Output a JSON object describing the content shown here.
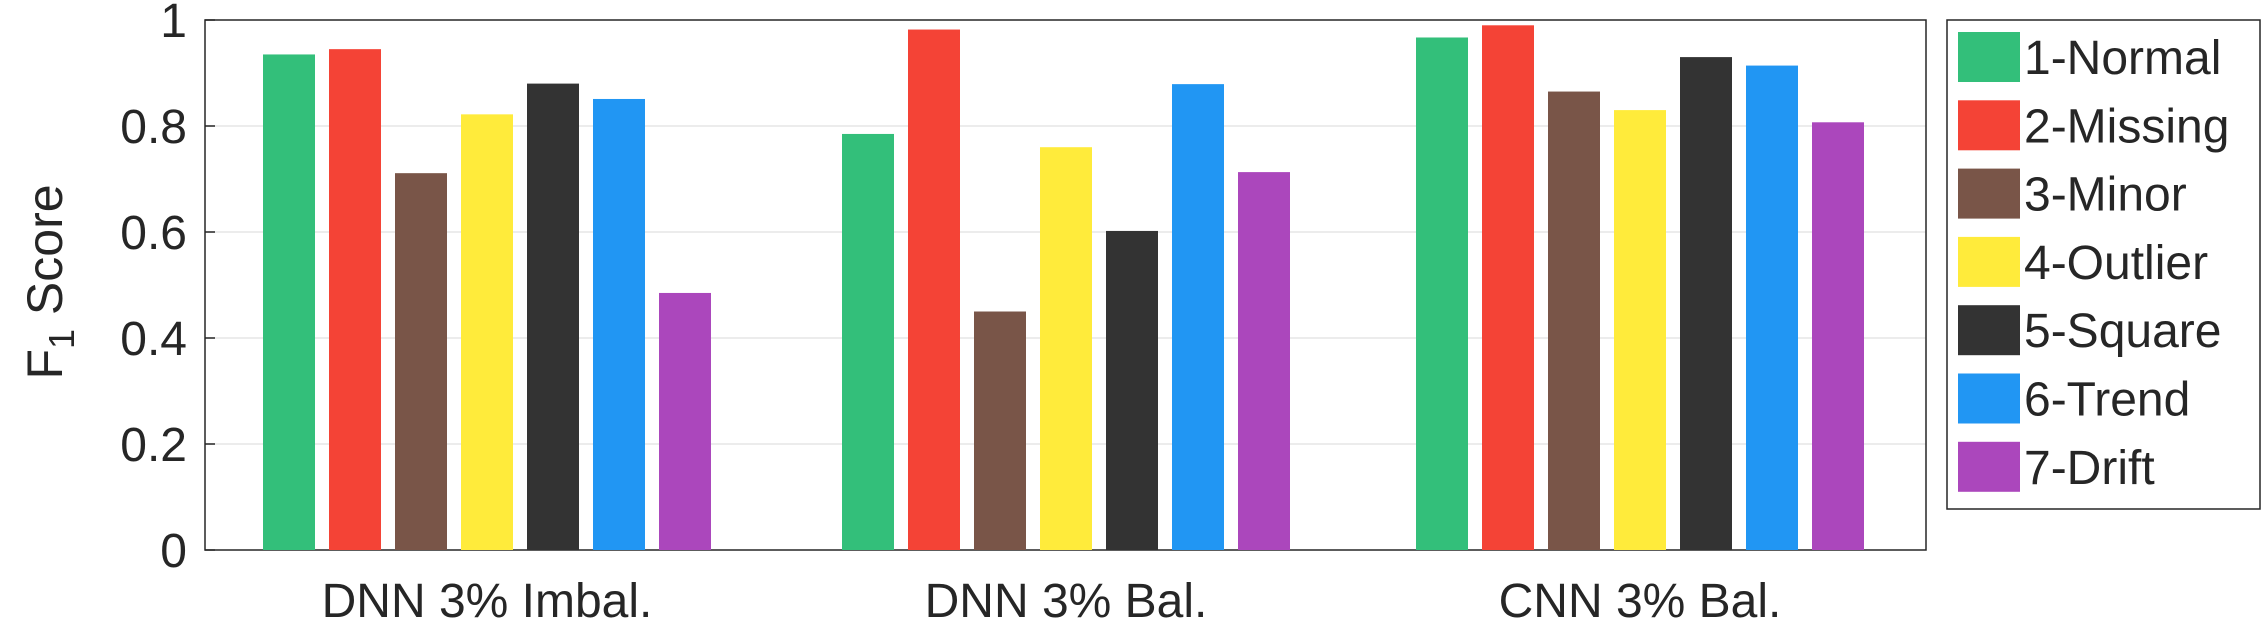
{
  "chart_data": {
    "type": "bar",
    "title": "",
    "xlabel": "",
    "ylabel": {
      "main": "F",
      "subscript": "1",
      "rest": " Score"
    },
    "ylim": [
      0,
      1
    ],
    "yticks": [
      0,
      0.2,
      0.4,
      0.6,
      0.8,
      1
    ],
    "ytick_labels": [
      "0",
      "0.2",
      "0.4",
      "0.6",
      "0.8",
      "1"
    ],
    "grid": "horizontal",
    "legend_position": "right",
    "categories": [
      "DNN 3% Imbal.",
      "DNN 3% Bal.",
      "CNN 3% Bal."
    ],
    "series": [
      {
        "name": "1-Normal",
        "color": "#33bf7a",
        "values": [
          0.935,
          0.785,
          0.967
        ]
      },
      {
        "name": "2-Missing",
        "color": "#f44336",
        "values": [
          0.945,
          0.982,
          0.99
        ]
      },
      {
        "name": "3-Minor",
        "color": "#795548",
        "values": [
          0.711,
          0.45,
          0.865
        ]
      },
      {
        "name": "4-Outlier",
        "color": "#ffeb3b",
        "values": [
          0.822,
          0.76,
          0.83
        ]
      },
      {
        "name": "5-Square",
        "color": "#333333",
        "values": [
          0.88,
          0.602,
          0.93
        ]
      },
      {
        "name": "6-Trend",
        "color": "#2196f3",
        "values": [
          0.851,
          0.879,
          0.914
        ]
      },
      {
        "name": "7-Drift",
        "color": "#ab47bc",
        "values": [
          0.485,
          0.713,
          0.807
        ]
      }
    ]
  }
}
